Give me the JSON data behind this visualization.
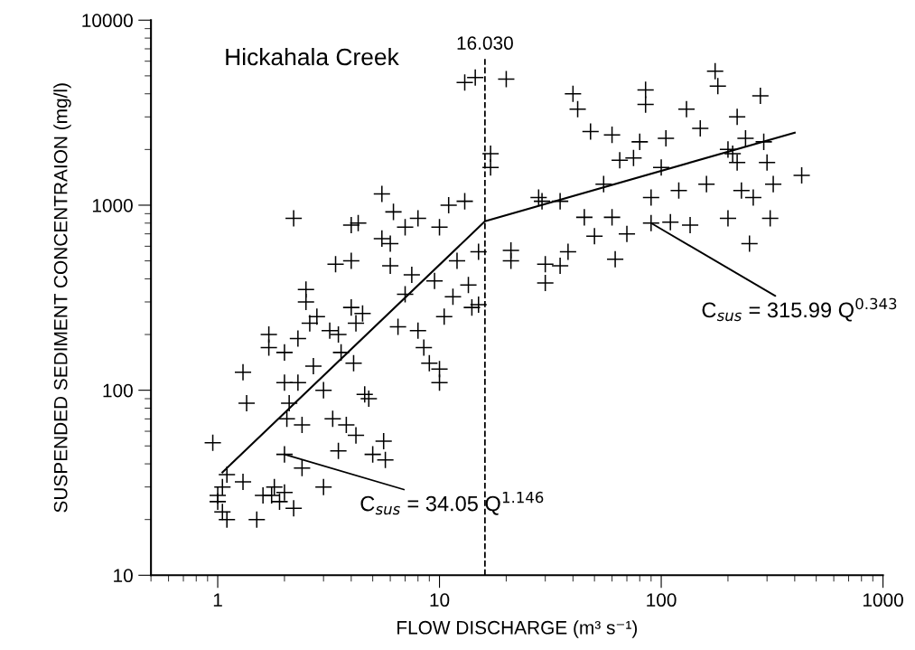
{
  "chart_data": {
    "type": "scatter",
    "xlabel": "FLOW DISCHARGE (m³ s⁻¹)",
    "ylabel": "SUSPENDED SEDIMENT CONCENTRAION (mg/l)",
    "log": "xy",
    "xlim": [
      0.5,
      1000
    ],
    "ylim": [
      10,
      10000
    ],
    "xticks": [
      1,
      10,
      100,
      1000
    ],
    "yticks": [
      10,
      100,
      1000,
      10000
    ],
    "grid": false,
    "marker": "cross",
    "series": [
      {
        "color": "#000000",
        "x": [
          0.95,
          1.0,
          1.0,
          1.05,
          1.05,
          1.1,
          1.1,
          1.3,
          1.3,
          1.35,
          1.5,
          1.6,
          1.7,
          1.7,
          1.75,
          1.8,
          1.9,
          2.0,
          2.0,
          2.0,
          2.0,
          2.05,
          2.1,
          2.2,
          2.2,
          2.3,
          2.3,
          2.4,
          2.4,
          2.5,
          2.5,
          2.6,
          2.7,
          2.8,
          3.0,
          3.0,
          3.2,
          3.3,
          3.4,
          3.5,
          3.5,
          3.6,
          3.8,
          4.0,
          4.0,
          4.0,
          4.1,
          4.2,
          4.2,
          4.3,
          4.5,
          4.6,
          4.8,
          5.0,
          5.5,
          5.5,
          5.6,
          5.7,
          6,
          6,
          6.2,
          6.5,
          7,
          7,
          7.5,
          8,
          8,
          8.5,
          9,
          9.5,
          10,
          10,
          10,
          10.5,
          11,
          11.5,
          12,
          13,
          13,
          13.5,
          14,
          14.5,
          15,
          15,
          17,
          17,
          20,
          21,
          21,
          28,
          29,
          30,
          30,
          35,
          35,
          38,
          40,
          42,
          45,
          48,
          50,
          55,
          60,
          60,
          62,
          65,
          70,
          75,
          80,
          85,
          85,
          90,
          90,
          100,
          105,
          110,
          120,
          130,
          135,
          150,
          160,
          175,
          180,
          200,
          200,
          210,
          220,
          220,
          230,
          240,
          250,
          260,
          280,
          290,
          300,
          310,
          320,
          430
        ],
        "values": [
          52,
          27,
          25,
          30,
          22,
          20,
          35,
          32,
          125,
          85,
          20,
          27,
          200,
          170,
          27,
          30,
          25,
          28,
          45,
          110,
          160,
          70,
          85,
          850,
          23,
          110,
          190,
          38,
          65,
          300,
          350,
          230,
          135,
          250,
          30,
          100,
          210,
          70,
          480,
          47,
          200,
          160,
          65,
          780,
          500,
          280,
          140,
          57,
          230,
          800,
          260,
          95,
          90,
          45,
          1150,
          660,
          53,
          42,
          620,
          470,
          920,
          220,
          330,
          760,
          420,
          850,
          210,
          170,
          140,
          390,
          760,
          110,
          130,
          250,
          1000,
          320,
          500,
          1050,
          4600,
          370,
          280,
          4900,
          560,
          290,
          1900,
          1600,
          4800,
          570,
          500,
          1100,
          1050,
          380,
          480,
          1050,
          470,
          560,
          4000,
          3300,
          860,
          2500,
          680,
          1300,
          2400,
          860,
          510,
          1750,
          700,
          1800,
          2200,
          4200,
          3500,
          1100,
          800,
          1600,
          2300,
          810,
          1200,
          3300,
          780,
          2600,
          1300,
          5300,
          4400,
          2000,
          850,
          1900,
          3000,
          1700,
          1200,
          2300,
          620,
          1100,
          3900,
          2200,
          1700,
          850,
          1300,
          1450
        ]
      },
      {
        "type": "line",
        "color": "#000000",
        "marker": "none",
        "x": [
          1.05,
          16.03,
          400
        ],
        "values": [
          36,
          818,
          2467
        ]
      }
    ],
    "ref_lines": [
      {
        "axis": "x",
        "value": 16.03,
        "label": "16.030",
        "line_style": "dashed",
        "color": "#000000"
      }
    ],
    "annotations": [
      "Hickahala Creek",
      {
        "text": "C$_{sus}$ = 34.05 Q$^{1.146}$",
        "x": 2.0,
        "y": 45
      },
      {
        "text": "C$_{sus}$ = 315.99 Q$^{0.343}$",
        "x": 90,
        "y": 800
      }
    ]
  }
}
